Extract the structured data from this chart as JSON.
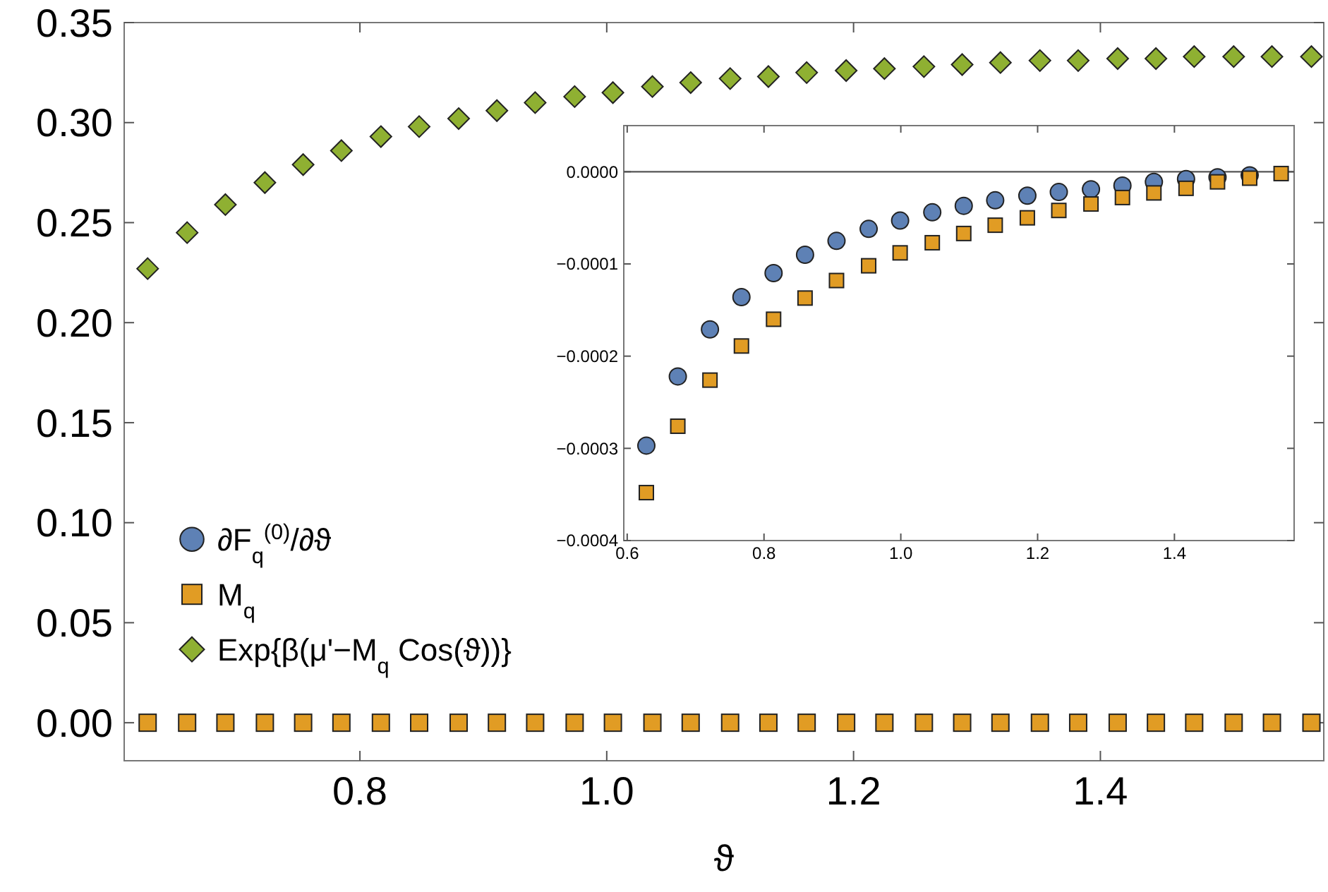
{
  "chart_data": [
    {
      "type": "scatter",
      "xlabel": "ϑ",
      "xlim": [
        0.609,
        1.581
      ],
      "ylim": [
        -0.019,
        0.35
      ],
      "xticks": [
        0.8,
        {
          "value": 1,
          "label": "1.0"
        },
        1.2,
        1.4
      ],
      "yticks": [
        {
          "value": 0,
          "label": "0.00"
        },
        0.05,
        {
          "value": 0.1,
          "label": "0.10"
        },
        0.15,
        {
          "value": 0.2,
          "label": "0.20"
        },
        0.25,
        {
          "value": 0.3,
          "label": "0.30"
        },
        0.35
      ],
      "legend": "left",
      "x": [
        0.628,
        0.66,
        0.691,
        0.723,
        0.754,
        0.785,
        0.817,
        0.848,
        0.88,
        0.911,
        0.942,
        0.974,
        1.005,
        1.037,
        1.068,
        1.1,
        1.131,
        1.162,
        1.194,
        1.225,
        1.257,
        1.288,
        1.319,
        1.351,
        1.382,
        1.414,
        1.445,
        1.476,
        1.508,
        1.539,
        1.571
      ],
      "series": [
        {
          "name": "∂F$_{q}$$^{(0)}$/∂ϑ",
          "color": "#5e81b5",
          "marker": "circle",
          "values": [
            null,
            null,
            null,
            null,
            null,
            null,
            null,
            null,
            null,
            null,
            null,
            null,
            null,
            null,
            null,
            null,
            null,
            null,
            null,
            null,
            null,
            null,
            null,
            null,
            null,
            null,
            null,
            null,
            null,
            null,
            null
          ]
        },
        {
          "name": "M$_{q}$",
          "color": "#e19c24",
          "marker": "square",
          "values": [
            0,
            0,
            0,
            0,
            0,
            0,
            0,
            0,
            0,
            0,
            0,
            0,
            0,
            0,
            0,
            0,
            0,
            0,
            0,
            0,
            0,
            0,
            0,
            0,
            0,
            0,
            0,
            0,
            0,
            0,
            0
          ]
        },
        {
          "name": "Exp{β(μ'−M$_{q}$ Cos(ϑ))}",
          "color": "#8fb032",
          "marker": "diamond",
          "values": [
            0.227,
            0.245,
            0.259,
            0.27,
            0.279,
            0.286,
            0.293,
            0.298,
            0.302,
            0.306,
            0.31,
            0.313,
            0.315,
            0.318,
            0.32,
            0.322,
            0.323,
            0.325,
            0.326,
            0.327,
            0.328,
            0.329,
            0.33,
            0.331,
            0.331,
            0.332,
            0.332,
            0.333,
            0.333,
            0.333,
            0.333
          ]
        }
      ]
    },
    {
      "type": "scatter",
      "xlim": [
        0.595,
        1.575
      ],
      "ylim": [
        -0.0004,
        5e-05
      ],
      "xticks": [
        0.6,
        0.8,
        {
          "value": 1,
          "label": "1.0"
        },
        1.2,
        1.4
      ],
      "yticks": [
        {
          "value": 0,
          "label": "0.0000"
        },
        {
          "value": -0.0001,
          "label": "−0.0001"
        },
        {
          "value": -0.0002,
          "label": "−0.0002"
        },
        {
          "value": -0.0003,
          "label": "−0.0003"
        },
        {
          "value": -0.0004,
          "label": "−0.0004"
        }
      ],
      "ref_lines": [
        {
          "axis": "y",
          "value": 0,
          "color": "#555555"
        }
      ],
      "x": [
        0.628,
        0.674,
        0.721,
        0.767,
        0.814,
        0.86,
        0.906,
        0.953,
        0.999,
        1.046,
        1.092,
        1.138,
        1.185,
        1.231,
        1.278,
        1.324,
        1.37,
        1.417,
        1.463,
        1.51,
        1.556
      ],
      "series": [
        {
          "color": "#5e81b5",
          "marker": "circle",
          "values": [
            -0.000297,
            -0.000222,
            -0.000171,
            -0.000136,
            -0.00011,
            -9e-05,
            -7.5e-05,
            -6.2e-05,
            -5.3e-05,
            -4.4e-05,
            -3.7e-05,
            -3.1e-05,
            -2.6e-05,
            -2.2e-05,
            -1.9e-05,
            -1.5e-05,
            -1.1e-05,
            -8e-06,
            -6e-06,
            -4e-06,
            null
          ]
        },
        {
          "color": "#e19c24",
          "marker": "square",
          "values": [
            -0.000348,
            -0.000276,
            -0.000226,
            -0.000189,
            -0.00016,
            -0.000137,
            -0.000118,
            -0.000102,
            -8.8e-05,
            -7.7e-05,
            -6.7e-05,
            -5.8e-05,
            -5e-05,
            -4.2e-05,
            -3.5e-05,
            -2.8e-05,
            -2.3e-05,
            -1.8e-05,
            -1.1e-05,
            -7e-06,
            -2e-06
          ]
        }
      ]
    }
  ]
}
